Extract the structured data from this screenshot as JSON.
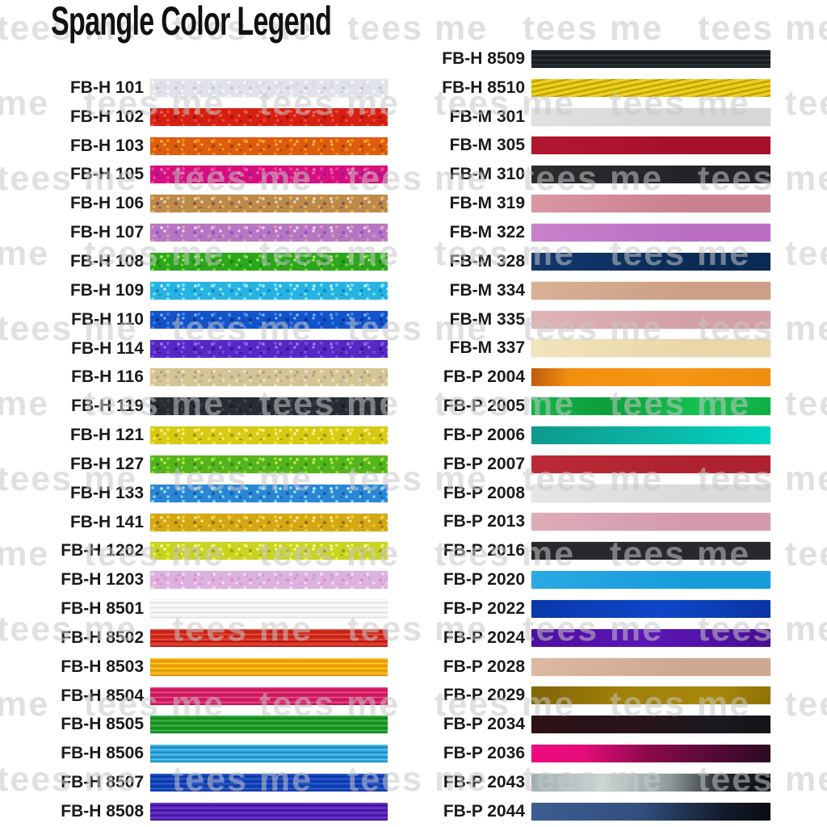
{
  "title": "Spangle Color Legend",
  "watermark": {
    "text": "tees me"
  },
  "legend": {
    "columns": [
      {
        "side": "left",
        "swatches": [
          {
            "code": "FB-H 101",
            "texture": "glitter",
            "colors": [
              "#e2e3e8",
              "#f8f9fb",
              "#bfc8d6",
              "#d3d8e4"
            ]
          },
          {
            "code": "FB-H 102",
            "texture": "glitter",
            "colors": [
              "#d62014",
              "#f04a32",
              "#a81108",
              "#e86a50"
            ]
          },
          {
            "code": "FB-H 103",
            "texture": "glitter",
            "colors": [
              "#dd5c0e",
              "#f69110",
              "#ab3d06",
              "#f5b358"
            ]
          },
          {
            "code": "FB-H 105",
            "texture": "glitter",
            "colors": [
              "#d5107e",
              "#ee3f9e",
              "#9a178c",
              "#f06ab8"
            ]
          },
          {
            "code": "FB-H 106",
            "texture": "glitter",
            "colors": [
              "#bd8a4a",
              "#eeb055",
              "#7d5a54",
              "#e5d8ca"
            ]
          },
          {
            "code": "FB-H 107",
            "texture": "glitter",
            "colors": [
              "#b677c2",
              "#e795bd",
              "#7e58cc",
              "#ecd2ee"
            ]
          },
          {
            "code": "FB-H 108",
            "texture": "glitter",
            "colors": [
              "#2da51f",
              "#6cdb2d",
              "#127f16",
              "#a6ee5a"
            ]
          },
          {
            "code": "FB-H 109",
            "texture": "glitter",
            "colors": [
              "#27b3e2",
              "#74e3f5",
              "#0e88bb",
              "#bdf2fb"
            ]
          },
          {
            "code": "FB-H 110",
            "texture": "glitter",
            "colors": [
              "#1252ca",
              "#3e80ea",
              "#0a348e",
              "#7cadf5"
            ]
          },
          {
            "code": "FB-H 114",
            "texture": "glitter",
            "colors": [
              "#5628c4",
              "#7e4cec",
              "#3a1686",
              "#a278f2"
            ]
          },
          {
            "code": "FB-H 116",
            "texture": "glitter",
            "colors": [
              "#d5c496",
              "#f0e3bb",
              "#9dac9b",
              "#bb9c6d"
            ]
          },
          {
            "code": "FB-H 119",
            "texture": "glitter",
            "colors": [
              "#262c32",
              "#3a484f",
              "#14191d",
              "#2f3b42"
            ]
          },
          {
            "code": "FB-H 121",
            "texture": "glitter",
            "colors": [
              "#d7ca15",
              "#f3eb40",
              "#a29110",
              "#f9f5a2"
            ]
          },
          {
            "code": "FB-H 127",
            "texture": "glitter",
            "colors": [
              "#55b41e",
              "#8bdf2f",
              "#2b8c18",
              "#c2f162"
            ]
          },
          {
            "code": "FB-H 133",
            "texture": "glitter",
            "colors": [
              "#2b86d6",
              "#7dd7f3",
              "#1a5caa",
              "#b6edfb"
            ]
          },
          {
            "code": "FB-H 141",
            "texture": "glitter",
            "colors": [
              "#d4a713",
              "#f1cd32",
              "#92700d",
              "#f9e98e"
            ]
          },
          {
            "code": "FB-H 1202",
            "texture": "glitter",
            "colors": [
              "#c9d321",
              "#ebf341",
              "#8fa916",
              "#f7fb9e"
            ]
          },
          {
            "code": "FB-H 1203",
            "texture": "glitter",
            "colors": [
              "#ddb2de",
              "#f4d8f2",
              "#e08cc4",
              "#c49ae2"
            ]
          },
          {
            "code": "FB-H 8501",
            "texture": "stripes",
            "colors": [
              "#f3f3f4",
              "#ffffff",
              "#dddde1"
            ]
          },
          {
            "code": "FB-H 8502",
            "texture": "stripes",
            "colors": [
              "#d32b1e",
              "#e85a4a",
              "#ac1a12"
            ]
          },
          {
            "code": "FB-H 8503",
            "texture": "stripes",
            "colors": [
              "#f3aa08",
              "#ffc93e",
              "#d08a05"
            ]
          },
          {
            "code": "FB-H 8504",
            "texture": "stripes",
            "colors": [
              "#d72166",
              "#ef508b",
              "#b0124c"
            ]
          },
          {
            "code": "FB-H 8505",
            "texture": "stripes",
            "colors": [
              "#1f9c2b",
              "#40c14b",
              "#137420"
            ]
          },
          {
            "code": "FB-H 8506",
            "texture": "stripes",
            "colors": [
              "#2fa5da",
              "#66c9ef",
              "#167fb4"
            ]
          },
          {
            "code": "FB-H 8507",
            "texture": "stripes",
            "colors": [
              "#1644ba",
              "#2f68dd",
              "#0b2d92"
            ]
          },
          {
            "code": "FB-H 8508",
            "texture": "stripes",
            "colors": [
              "#5322b4",
              "#7a42da",
              "#381289"
            ]
          }
        ]
      },
      {
        "side": "right",
        "swatches": [
          {
            "code": "FB-H 8509",
            "texture": "stripes",
            "colors": [
              "#212529",
              "#353b41",
              "#0f1215"
            ]
          },
          {
            "code": "FB-H 8510",
            "texture": "stripes",
            "angle": 168,
            "colors": [
              "#e2c20d",
              "#f5e13c",
              "#9f8c06"
            ]
          },
          {
            "code": "FB-M 301",
            "texture": "flat",
            "colors": [
              "#d5d7d9",
              "#dfe1e2"
            ]
          },
          {
            "code": "FB-M 305",
            "texture": "flat",
            "colors": [
              "#a5112a",
              "#b21730"
            ]
          },
          {
            "code": "FB-M 310",
            "texture": "flat",
            "colors": [
              "#232427",
              "#2b2c2f"
            ]
          },
          {
            "code": "FB-M 319",
            "texture": "flat",
            "colors": [
              "#c9808f",
              "#db97a3"
            ]
          },
          {
            "code": "FB-M 322",
            "texture": "flat",
            "colors": [
              "#ba6fc2",
              "#c981cd"
            ]
          },
          {
            "code": "FB-M 328",
            "texture": "flat",
            "colors": [
              "#0b2b56",
              "#11396e"
            ]
          },
          {
            "code": "FB-M 334",
            "texture": "flat",
            "colors": [
              "#cba086",
              "#d9b194"
            ]
          },
          {
            "code": "FB-M 335",
            "texture": "flat",
            "colors": [
              "#d2a0a6",
              "#e0b4b7"
            ]
          },
          {
            "code": "FB-M 337",
            "texture": "flat",
            "colors": [
              "#e9d7a8",
              "#f2e4bd"
            ]
          },
          {
            "code": "FB-P 2004",
            "texture": "sheen",
            "colors": [
              "#c05a0d",
              "#f28f0e",
              "#f79612",
              "#ef8d0e"
            ],
            "positions": [
              "0%",
              "16%",
              "60%",
              "100%"
            ]
          },
          {
            "code": "FB-P 2005",
            "texture": "sheen",
            "colors": [
              "#13b747",
              "#0e9e3c",
              "#16c050",
              "#0fae44"
            ],
            "positions": [
              "0%",
              "30%",
              "70%",
              "100%"
            ]
          },
          {
            "code": "FB-P 2006",
            "texture": "sheen",
            "colors": [
              "#0d9a8c",
              "#0cb4a3",
              "#00d6c5"
            ],
            "positions": [
              "0%",
              "50%",
              "100%"
            ]
          },
          {
            "code": "FB-P 2007",
            "texture": "flat",
            "colors": [
              "#ae232f",
              "#bb2a36"
            ]
          },
          {
            "code": "FB-P 2008",
            "texture": "flat",
            "colors": [
              "#d9dbdc",
              "#e4e6e7"
            ]
          },
          {
            "code": "FB-P 2013",
            "texture": "flat",
            "colors": [
              "#d39aad",
              "#dfacb9"
            ]
          },
          {
            "code": "FB-P 2016",
            "texture": "flat",
            "colors": [
              "#27292c"
            ]
          },
          {
            "code": "FB-P 2020",
            "texture": "flat",
            "colors": [
              "#189cdc",
              "#2aa9e3"
            ]
          },
          {
            "code": "FB-P 2022",
            "texture": "sheen",
            "colors": [
              "#0a38ac",
              "#0d47c8",
              "#0a35a2"
            ],
            "positions": [
              "0%",
              "55%",
              "100%"
            ]
          },
          {
            "code": "FB-P 2024",
            "texture": "sheen",
            "colors": [
              "#4e10a0",
              "#5c16b7",
              "#470f93"
            ],
            "positions": [
              "0%",
              "50%",
              "100%"
            ]
          },
          {
            "code": "FB-P 2028",
            "texture": "flat",
            "colors": [
              "#cda890",
              "#dcb9a0"
            ]
          },
          {
            "code": "FB-P 2029",
            "texture": "sheen",
            "colors": [
              "#806407",
              "#9e7f09",
              "#a9890b",
              "#8f7208"
            ],
            "positions": [
              "0%",
              "35%",
              "75%",
              "100%"
            ]
          },
          {
            "code": "FB-P 2034",
            "texture": "sheen",
            "colors": [
              "#2c1215",
              "#28141a",
              "#1a1a1f",
              "#141317"
            ],
            "positions": [
              "0%",
              "45%",
              "75%",
              "100%"
            ]
          },
          {
            "code": "FB-P 2036",
            "texture": "sheen",
            "colors": [
              "#ee0b80",
              "#e50c7a",
              "#8e0a4c",
              "#57093a",
              "#2c0a22"
            ],
            "positions": [
              "0%",
              "22%",
              "48%",
              "75%",
              "100%"
            ]
          },
          {
            "code": "FB-P 2043",
            "texture": "sheen",
            "colors": [
              "#9fadae",
              "#ccd5d4",
              "#8d9a9a",
              "#23282a",
              "#0b0d0f"
            ],
            "positions": [
              "0%",
              "30%",
              "58%",
              "80%",
              "100%"
            ]
          },
          {
            "code": "FB-P 2044",
            "texture": "sheen",
            "colors": [
              "#3c5d92",
              "#32507f",
              "#131b2b",
              "#0a0c12"
            ],
            "positions": [
              "0%",
              "45%",
              "80%",
              "100%"
            ]
          }
        ]
      }
    ]
  }
}
